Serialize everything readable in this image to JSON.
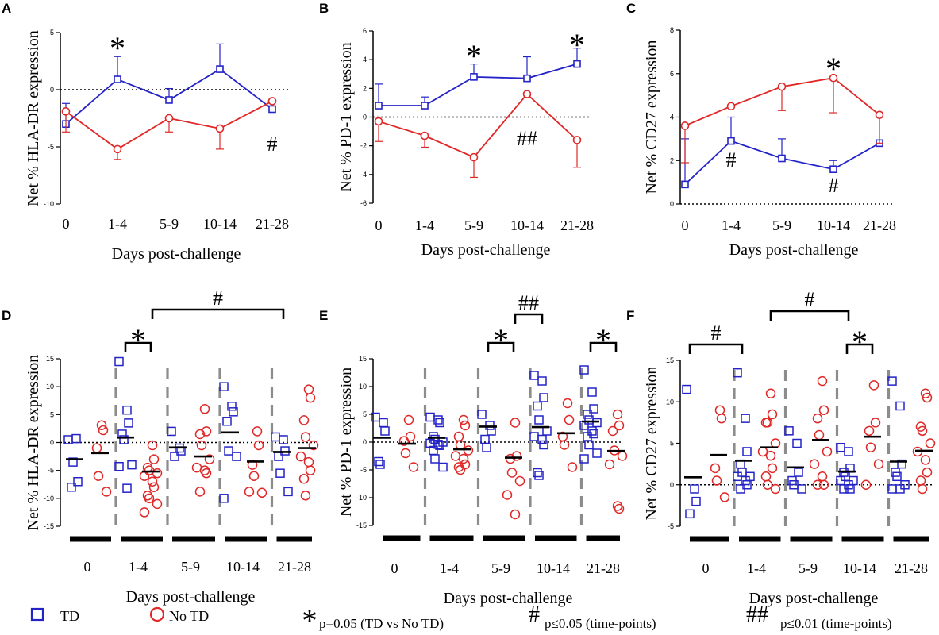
{
  "colors": {
    "td": "#2323c8",
    "notd": "#e02828",
    "axis": "#000000",
    "divider": "#8c8c8c"
  },
  "legend": {
    "td": "TD",
    "notd": "No TD",
    "star_symbol": "*",
    "star_text": "p=0.05 (TD vs No TD)",
    "hash_symbol": "#",
    "hash_text": "p≤0.05 (time-points)",
    "dhash_symbol": "##",
    "dhash_text": "p≤0.01 (time-points)"
  },
  "chart_data": [
    {
      "panel": "A",
      "type": "line",
      "categories": [
        "0",
        "1-4",
        "5-9",
        "10-14",
        "21-28"
      ],
      "xlabel": "Days post-challenge",
      "ylabel": "Net % HLA-DR expression",
      "ylim": [
        -10,
        5
      ],
      "yticks": [
        5,
        0,
        -5,
        -10
      ],
      "series": [
        {
          "name": "TD",
          "values": [
            -3.0,
            0.9,
            -0.9,
            1.8,
            -1.7
          ],
          "err": [
            1.8,
            2.0,
            1.0,
            2.2,
            0.0
          ]
        },
        {
          "name": "No TD",
          "values": [
            -1.9,
            -5.2,
            -2.5,
            -3.4,
            -1.0
          ],
          "err": [
            1.8,
            0.9,
            1.2,
            1.8,
            0.0
          ]
        }
      ],
      "annotations": [
        {
          "cat": 1,
          "text": "*"
        },
        {
          "cat": 4,
          "text": "#"
        }
      ]
    },
    {
      "panel": "B",
      "type": "line",
      "categories": [
        "0",
        "1-4",
        "5-9",
        "10-14",
        "21-28"
      ],
      "xlabel": "Days post-challenge",
      "ylabel": "Net % PD-1 expression",
      "ylim": [
        -6,
        6
      ],
      "yticks": [
        6,
        4,
        2,
        0,
        -2,
        -4,
        -6
      ],
      "series": [
        {
          "name": "TD",
          "values": [
            0.8,
            0.8,
            2.8,
            2.7,
            3.7
          ],
          "err": [
            1.5,
            0.6,
            0.9,
            1.5,
            1.1
          ]
        },
        {
          "name": "No TD",
          "values": [
            -0.3,
            -1.3,
            -2.8,
            1.6,
            -1.6
          ],
          "err": [
            1.4,
            0.8,
            1.4,
            0.0,
            1.9
          ]
        }
      ],
      "annotations": [
        {
          "cat": 2,
          "text": "*"
        },
        {
          "cat": 4,
          "text": "*"
        },
        {
          "cat": 3,
          "text": "##"
        }
      ]
    },
    {
      "panel": "C",
      "type": "line",
      "categories": [
        "0",
        "1-4",
        "5-9",
        "10-14",
        "21-28"
      ],
      "xlabel": "Days post-challenge",
      "ylabel": "Net % CD27 expression",
      "ylim": [
        0,
        8
      ],
      "yticks": [
        8,
        6,
        4,
        2,
        0
      ],
      "series": [
        {
          "name": "TD",
          "values": [
            0.9,
            2.9,
            2.1,
            1.6,
            2.8
          ],
          "err": [
            2.1,
            1.1,
            0.9,
            0.4,
            0.0
          ]
        },
        {
          "name": "No TD",
          "values": [
            3.6,
            4.5,
            5.4,
            5.8,
            4.1
          ],
          "err": [
            1.7,
            0.0,
            1.1,
            1.6,
            1.3
          ]
        }
      ],
      "annotations": [
        {
          "cat": 3,
          "text": "*"
        },
        {
          "cat": 1,
          "text": "#"
        },
        {
          "cat": 3,
          "text": "#"
        }
      ]
    },
    {
      "panel": "D",
      "type": "scatter",
      "categories": [
        "0",
        "1-4",
        "5-9",
        "10-14",
        "21-28"
      ],
      "xlabel": "Days post-challenge",
      "ylabel": "Net % HLA-DR expression",
      "ylim": [
        -15,
        15
      ],
      "yticks": [
        15,
        10,
        5,
        0,
        -5,
        -10,
        -15
      ],
      "groups": [
        {
          "category": "0",
          "td": {
            "points": [
              0.5,
              0.7,
              -7.0,
              -8.0,
              -3.5
            ],
            "mean": -3.0
          },
          "notd": {
            "points": [
              3.1,
              2.2,
              -1.0,
              -6.0,
              -8.8
            ],
            "mean": -1.9
          }
        },
        {
          "category": "1-4",
          "td": {
            "points": [
              14.5,
              5.8,
              3.5,
              1.5,
              0.5,
              -4.0,
              -4.3,
              -8.2
            ],
            "mean": 0.9
          },
          "notd": {
            "points": [
              -0.5,
              -3.0,
              -4.5,
              -5.0,
              -5.5,
              -6.0,
              -7.0,
              -8.0,
              -9.5,
              -10.0,
              -11.0,
              -12.5
            ],
            "mean": -5.2
          }
        },
        {
          "category": "5-9",
          "td": {
            "points": [
              2.0,
              -1.0,
              -1.5,
              -2.5
            ],
            "mean": -0.9
          },
          "notd": {
            "points": [
              6.0,
              2.0,
              1.5,
              -0.5,
              -3.0,
              -4.5,
              -5.0,
              -5.5,
              -8.8
            ],
            "mean": -2.5
          }
        },
        {
          "category": "10-14",
          "td": {
            "points": [
              10.0,
              6.5,
              5.5,
              3.8,
              -1.5,
              -2.5,
              -10.0
            ],
            "mean": 1.8
          },
          "notd": {
            "points": [
              2.0,
              -0.5,
              -4.0,
              -6.0,
              -9.0,
              -8.8
            ],
            "mean": -3.4
          }
        },
        {
          "category": "21-28",
          "td": {
            "points": [
              1.0,
              0.5,
              -1.5,
              -2.5,
              -5.5,
              -8.8
            ],
            "mean": -1.7
          },
          "notd": {
            "points": [
              9.5,
              8.0,
              4.0,
              1.0,
              -0.5,
              -2.5,
              -3.5,
              -5.0,
              -6.5,
              -9.5
            ],
            "mean": -1.0
          }
        }
      ],
      "brackets": [
        {
          "from": 1,
          "to": 1,
          "level": 1,
          "text": "*"
        },
        {
          "from": 1,
          "to": 4,
          "level": 2,
          "text": "#"
        }
      ]
    },
    {
      "panel": "E",
      "type": "scatter",
      "categories": [
        "0",
        "1-4",
        "5-9",
        "10-14",
        "21-28"
      ],
      "xlabel": "Days post-challenge",
      "ylabel": "Net % PD-1 expression",
      "ylim": [
        -15,
        15
      ],
      "yticks": [
        15,
        10,
        5,
        0,
        -5,
        -10,
        -15
      ],
      "groups": [
        {
          "category": "0",
          "td": {
            "points": [
              4.5,
              3.5,
              2.0,
              -3.5,
              -4.0
            ],
            "mean": 0.8
          },
          "notd": {
            "points": [
              4.0,
              1.0,
              0.2,
              -2.0,
              -4.5
            ],
            "mean": -0.3
          }
        },
        {
          "category": "1-4",
          "td": {
            "points": [
              4.5,
              4.0,
              3.5,
              1.0,
              0.5,
              0.0,
              -0.2,
              -0.4,
              -0.6,
              -1.5,
              -3.0,
              -4.5
            ],
            "mean": 0.8
          },
          "notd": {
            "points": [
              4.0,
              3.0,
              1.0,
              -0.5,
              -1.5,
              -2.5,
              -3.0,
              -4.0,
              -4.5,
              -5.0
            ],
            "mean": -1.3
          }
        },
        {
          "category": "5-9",
          "td": {
            "points": [
              5.0,
              3.0,
              2.0,
              0.5,
              -1.0
            ],
            "mean": 2.8
          },
          "notd": {
            "points": [
              3.5,
              -2.5,
              -3.0,
              -5.5,
              -7.0,
              -9.5,
              -13.0
            ],
            "mean": -2.8
          }
        },
        {
          "category": "10-14",
          "td": {
            "points": [
              12.0,
              11.0,
              8.0,
              6.5,
              4.0,
              2.0,
              1.0,
              0.5,
              -0.5,
              -5.5,
              -6.0
            ],
            "mean": 2.7
          },
          "notd": {
            "points": [
              7.0,
              4.0,
              1.0,
              -0.5,
              -4.5
            ],
            "mean": 1.6
          }
        },
        {
          "category": "21-28",
          "td": {
            "points": [
              13.0,
              9.0,
              6.0,
              5.0,
              4.0,
              3.5,
              3.0,
              2.0,
              1.5,
              1.0,
              -0.5,
              -2.0,
              -3.0
            ],
            "mean": 3.7
          },
          "notd": {
            "points": [
              5.0,
              3.0,
              2.0,
              -1.5,
              -2.5,
              -4.0,
              -11.5,
              -12.0
            ],
            "mean": -1.6
          }
        }
      ],
      "brackets": [
        {
          "from": 2,
          "to": 2,
          "level": 1,
          "text": "*"
        },
        {
          "from": 2,
          "to": 3,
          "level": 2,
          "text": "##"
        },
        {
          "from": 4,
          "to": 4,
          "level": 1,
          "text": "*"
        }
      ]
    },
    {
      "panel": "F",
      "type": "scatter",
      "categories": [
        "0",
        "1-4",
        "5-9",
        "10-14",
        "21-28"
      ],
      "xlabel": "Days post-challenge",
      "ylabel": "Net % CD27 expression",
      "ylim": [
        -5,
        15
      ],
      "yticks": [
        15,
        10,
        5,
        0,
        -5
      ],
      "groups": [
        {
          "category": "0",
          "td": {
            "points": [
              11.5,
              -0.5,
              -2.0,
              -3.5
            ],
            "mean": 0.9
          },
          "notd": {
            "points": [
              9.0,
              8.0,
              2.0,
              0.5,
              -1.5
            ],
            "mean": 3.6
          }
        },
        {
          "category": "1-4",
          "td": {
            "points": [
              13.5,
              8.0,
              4.0,
              2.5,
              1.5,
              1.0,
              1.0,
              0.5,
              0.0,
              -0.5
            ],
            "mean": 2.9
          },
          "notd": {
            "points": [
              11.0,
              8.5,
              7.5,
              7.5,
              5.0,
              4.0,
              3.5,
              2.0,
              1.0,
              0.0,
              -0.5
            ],
            "mean": 4.5
          }
        },
        {
          "category": "5-9",
          "td": {
            "points": [
              6.5,
              5.0,
              1.5,
              0.5,
              0.0,
              -0.5
            ],
            "mean": 2.1
          },
          "notd": {
            "points": [
              12.5,
              9.0,
              8.0,
              6.0,
              4.0,
              2.5,
              1.0,
              0.0,
              0.0
            ],
            "mean": 5.4
          }
        },
        {
          "category": "10-14",
          "td": {
            "points": [
              4.5,
              4.0,
              2.0,
              1.5,
              1.0,
              0.5,
              0.5,
              0.0,
              -0.5,
              -0.5
            ],
            "mean": 1.6
          },
          "notd": {
            "points": [
              12.0,
              7.5,
              6.5,
              4.5,
              2.5,
              0.0
            ],
            "mean": 5.8
          }
        },
        {
          "category": "21-28",
          "td": {
            "points": [
              12.5,
              9.5,
              2.5,
              1.5,
              1.0,
              0.0,
              -0.5,
              -0.5
            ],
            "mean": 2.8
          },
          "notd": {
            "points": [
              11.0,
              10.5,
              7.0,
              6.5,
              5.0,
              4.0,
              3.0,
              1.5,
              0.5,
              -0.5
            ],
            "mean": 4.1
          }
        }
      ],
      "brackets": [
        {
          "from": 0,
          "to": 1,
          "level": 1,
          "text": "#"
        },
        {
          "from": 1,
          "to": 3,
          "level": 2,
          "text": "#"
        },
        {
          "from": 3,
          "to": 3,
          "level": 1,
          "text": "*"
        }
      ]
    }
  ]
}
